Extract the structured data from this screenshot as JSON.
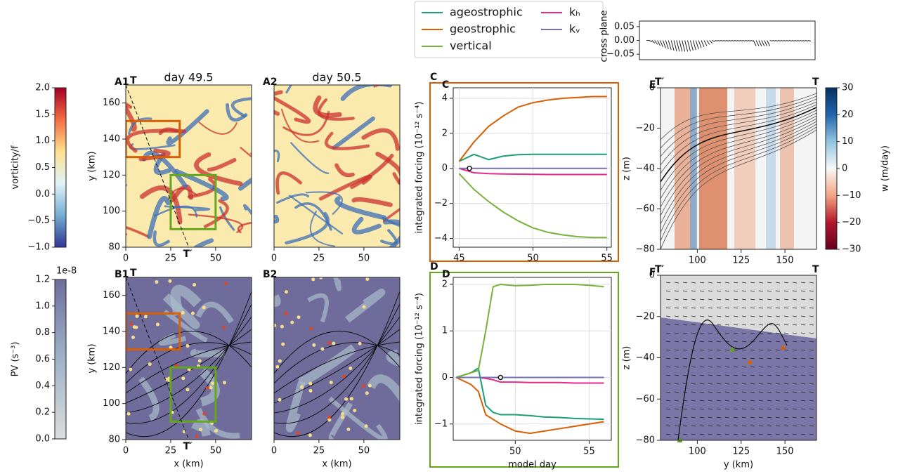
{
  "chart_data": [
    {
      "type": "colorbar",
      "label": "vorticity/f",
      "colors": [
        "#313695",
        "#74add1",
        "#e0f3f8",
        "#fee090",
        "#f46d43",
        "#a50026"
      ],
      "ylim": [
        -1,
        2
      ],
      "yticks": [
        {
          "value": -1,
          "label": "−1.0"
        },
        {
          "value": -0.5,
          "label": "−0.5"
        },
        {
          "value": 0,
          "label": "0.0"
        },
        {
          "value": 0.5,
          "label": "0.5"
        },
        {
          "value": 1,
          "label": "1.0"
        },
        {
          "value": 1.5,
          "label": "1.5"
        },
        {
          "value": 2,
          "label": "2.0"
        }
      ]
    },
    {
      "type": "colorbar",
      "label": "PV (s⁻³)",
      "offset": "1e-8",
      "colors": [
        "#dcdcdc",
        "#9fb3c8",
        "#6f6d9e"
      ],
      "ylim": [
        0,
        1.2
      ],
      "yticks": [
        {
          "value": 0,
          "label": "0.0"
        },
        {
          "value": 0.2,
          "label": "0.2"
        },
        {
          "value": 0.4,
          "label": "0.4"
        },
        {
          "value": 0.6,
          "label": "0.6"
        },
        {
          "value": 0.8,
          "label": "0.8"
        },
        {
          "value": 1,
          "label": "1.0"
        },
        {
          "value": 1.2,
          "label": "1.2"
        }
      ]
    },
    {
      "type": "heatmap",
      "panel": "A1",
      "title": "day 49.5",
      "ylabel": "y (km)",
      "xlim": [
        0,
        70
      ],
      "ylim": [
        80,
        170
      ],
      "xticks": [
        0,
        25,
        50
      ],
      "yticks": [
        80,
        100,
        120,
        140,
        160
      ],
      "regions": [
        {
          "xlim": [
            0,
            30
          ],
          "ylim": [
            130,
            150
          ],
          "color": "#d95f02"
        },
        {
          "xlim": [
            25,
            50
          ],
          "ylim": [
            90,
            120
          ],
          "color": "#66a61e"
        }
      ],
      "section": {
        "x": [
          0,
          35
        ],
        "y": [
          170,
          80
        ],
        "labels": [
          "T",
          "T′"
        ]
      }
    },
    {
      "type": "heatmap",
      "panel": "A2",
      "title": "day 50.5",
      "xlim": [
        0,
        70
      ],
      "ylim": [
        80,
        170
      ],
      "xticks": [
        0,
        25,
        50
      ]
    },
    {
      "type": "heatmap",
      "panel": "B1",
      "xlabel": "x (km)",
      "ylabel": "y (km)",
      "xlim": [
        0,
        70
      ],
      "ylim": [
        80,
        170
      ],
      "xticks": [
        0,
        25,
        50
      ],
      "yticks": [
        80,
        100,
        120,
        140,
        160
      ],
      "regions": [
        {
          "xlim": [
            0,
            30
          ],
          "ylim": [
            130,
            150
          ],
          "color": "#d95f02"
        },
        {
          "xlim": [
            25,
            50
          ],
          "ylim": [
            90,
            120
          ],
          "color": "#66a61e"
        }
      ],
      "section": {
        "x": [
          0,
          35
        ],
        "y": [
          170,
          80
        ],
        "labels": [
          "T",
          "T′"
        ]
      }
    },
    {
      "type": "heatmap",
      "panel": "B2",
      "xlabel": "x (km)",
      "xlim": [
        0,
        70
      ],
      "ylim": [
        80,
        170
      ],
      "xticks": [
        0,
        25,
        50
      ]
    },
    {
      "type": "line",
      "panel": "C",
      "ylabel": "integrated forcing (10⁻¹² s⁻⁴)",
      "frame_color": "#d95f02",
      "grid": true,
      "xlim": [
        44.6,
        55.3
      ],
      "ylim": [
        -4.5,
        4.6
      ],
      "xticks": [
        45,
        50,
        55
      ],
      "yticks": [
        {
          "value": -4,
          "label": "−4"
        },
        {
          "value": -2,
          "label": "−2"
        },
        0,
        2,
        4
      ],
      "x": [
        45,
        46,
        47,
        48,
        49,
        50,
        51,
        52,
        53,
        54,
        55
      ],
      "series": [
        {
          "name": "ageostrophic",
          "color": "#1b9e77",
          "values": [
            0.4,
            0.8,
            0.5,
            0.7,
            0.78,
            0.8,
            0.8,
            0.8,
            0.8,
            0.8,
            0.8
          ]
        },
        {
          "name": "geostrophic",
          "color": "#d95f02",
          "values": [
            0.4,
            1.5,
            2.4,
            3.0,
            3.5,
            3.75,
            3.9,
            4.0,
            4.05,
            4.1,
            4.1
          ]
        },
        {
          "name": "vertical",
          "color": "#77b33a",
          "values": [
            -0.3,
            -1.2,
            -1.9,
            -2.5,
            -3.0,
            -3.4,
            -3.65,
            -3.8,
            -3.9,
            -3.95,
            -3.95
          ]
        },
        {
          "name": "kₕ",
          "color": "#e7298a",
          "values": [
            0,
            -0.25,
            -0.3,
            -0.32,
            -0.33,
            -0.34,
            -0.35,
            -0.35,
            -0.35,
            -0.35,
            -0.35
          ]
        },
        {
          "name": "kᵥ",
          "color": "#7570b3",
          "values": [
            0,
            0,
            0,
            0,
            0,
            0,
            0,
            0,
            0,
            0,
            0
          ]
        }
      ],
      "point": {
        "x": 45.7,
        "y": 0
      }
    },
    {
      "type": "line",
      "panel": "D",
      "ylabel": "integrated forcing (10⁻¹² s⁻⁴)",
      "xlabel": "model day",
      "frame_color": "#66a61e",
      "grid": true,
      "xlim": [
        45.8,
        56.5
      ],
      "ylim": [
        -1.35,
        2.15
      ],
      "xticks": [
        50,
        55
      ],
      "yticks": [
        {
          "value": -1,
          "label": "−1"
        },
        0,
        1,
        2
      ],
      "x": [
        46,
        47,
        47.5,
        48,
        48.5,
        49,
        50,
        51,
        52,
        53,
        54,
        55,
        56
      ],
      "series": [
        {
          "color": "#1b9e77",
          "values": [
            0,
            0.1,
            0.2,
            -0.6,
            -0.75,
            -0.8,
            -0.8,
            -0.82,
            -0.85,
            -0.86,
            -0.88,
            -0.89,
            -0.9
          ]
        },
        {
          "color": "#d95f02",
          "values": [
            0,
            -0.15,
            -0.3,
            -0.8,
            -0.9,
            -1.0,
            -1.15,
            -1.2,
            -1.15,
            -1.1,
            -1.05,
            -1.0,
            -0.95
          ]
        },
        {
          "color": "#77b33a",
          "values": [
            0,
            0.1,
            0.15,
            1.0,
            1.95,
            2.0,
            1.97,
            1.98,
            2.0,
            2.0,
            2.0,
            1.98,
            1.95
          ]
        },
        {
          "color": "#e7298a",
          "values": [
            0,
            0,
            0,
            -0.02,
            -0.05,
            -0.1,
            -0.1,
            -0.11,
            -0.11,
            -0.11,
            -0.12,
            -0.12,
            -0.12
          ]
        },
        {
          "color": "#7570b3",
          "values": [
            0,
            0,
            0,
            0,
            0,
            0,
            0,
            0,
            0,
            0,
            0,
            0,
            0
          ]
        }
      ],
      "point": {
        "x": 49,
        "y": 0
      }
    },
    {
      "type": "quiver",
      "ylabel": "cross plane",
      "ylim": [
        -0.07,
        0.07
      ],
      "yticks": [
        {
          "value": -0.05,
          "label": "−0.05"
        },
        {
          "value": 0,
          "label": "0.00"
        },
        0.05
      ]
    },
    {
      "type": "section",
      "panel": "E",
      "ylabel": "z (m)",
      "xlim": [
        79,
        168
      ],
      "ylim": [
        -80,
        0
      ],
      "xticks": [
        100,
        125,
        150
      ],
      "yticks": [
        {
          "value": -80,
          "label": "−80"
        },
        {
          "value": -60,
          "label": "−60"
        },
        {
          "value": -40,
          "label": "−40"
        },
        {
          "value": -20,
          "label": "−20"
        },
        0
      ],
      "ends": [
        "T′",
        "T"
      ]
    },
    {
      "type": "colorbar",
      "label": "w (m/day)",
      "colors": [
        "#67001f",
        "#b2182b",
        "#f4a582",
        "#f7f7f7",
        "#92c5de",
        "#2166ac",
        "#053061"
      ],
      "ylim": [
        -30,
        30
      ],
      "yticks": [
        {
          "value": -30,
          "label": "−30"
        },
        {
          "value": -20,
          "label": "−20"
        },
        {
          "value": -10,
          "label": "−10"
        },
        0,
        10,
        20,
        30
      ]
    },
    {
      "type": "section",
      "panel": "F",
      "ylabel": "z (m)",
      "xlabel": "y (km)",
      "xlim": [
        79,
        168
      ],
      "ylim": [
        -80,
        0
      ],
      "xticks": [
        100,
        125,
        150
      ],
      "yticks": [
        {
          "value": -80,
          "label": "−80"
        },
        {
          "value": -60,
          "label": "−60"
        },
        {
          "value": -40,
          "label": "−40"
        },
        {
          "value": -20,
          "label": "−20"
        },
        0
      ],
      "ends": [
        "T′",
        "T"
      ],
      "markers": [
        {
          "x": 90,
          "y": -80,
          "color": "#66a61e"
        },
        {
          "x": 120,
          "y": -36,
          "color": "#66a61e"
        },
        {
          "x": 130,
          "y": -42,
          "color": "#d95f02"
        },
        {
          "x": 149,
          "y": -35,
          "color": "#d95f02"
        }
      ]
    }
  ]
}
